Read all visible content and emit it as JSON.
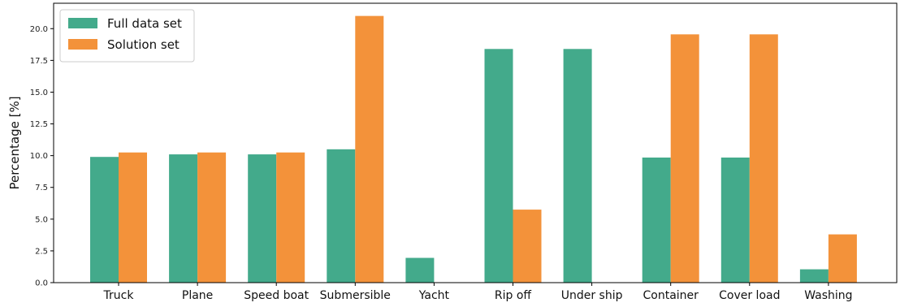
{
  "chart_data": {
    "type": "bar",
    "title": "",
    "xlabel": "",
    "ylabel": "Percentage [%]",
    "ylim": [
      0,
      22
    ],
    "yticks": [
      "0.0",
      "2.5",
      "5.0",
      "7.5",
      "10.0",
      "12.5",
      "15.0",
      "17.5",
      "20.0"
    ],
    "ytick_values": [
      0,
      2.5,
      5,
      7.5,
      10,
      12.5,
      15,
      17.5,
      20
    ],
    "categories": [
      "Truck",
      "Plane",
      "Speed boat",
      "Submersible",
      "Yacht",
      "Rip off",
      "Under ship",
      "Container",
      "Cover load",
      "Washing"
    ],
    "series": [
      {
        "name": "Full data set",
        "color": "#43aa8b",
        "values": [
          9.9,
          10.1,
          10.1,
          10.5,
          1.95,
          18.4,
          18.4,
          9.85,
          9.85,
          1.05
        ]
      },
      {
        "name": "Solution set",
        "color": "#f3923a",
        "values": [
          10.25,
          10.25,
          10.25,
          21.0,
          0,
          5.75,
          0,
          19.55,
          19.55,
          3.8
        ]
      }
    ],
    "grid": false,
    "legend_position": "top-left"
  }
}
